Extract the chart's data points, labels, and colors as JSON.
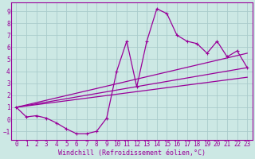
{
  "xlabel": "Windchill (Refroidissement éolien,°C)",
  "background_color": "#cce8e4",
  "grid_color": "#aacccc",
  "line_color": "#990099",
  "axis_color": "#990099",
  "xlim": [
    -0.5,
    23.5
  ],
  "ylim": [
    -1.7,
    9.7
  ],
  "xticks": [
    0,
    1,
    2,
    3,
    4,
    5,
    6,
    7,
    8,
    9,
    10,
    11,
    12,
    13,
    14,
    15,
    16,
    17,
    18,
    19,
    20,
    21,
    22,
    23
  ],
  "yticks": [
    -1,
    0,
    1,
    2,
    3,
    4,
    5,
    6,
    7,
    8,
    9
  ],
  "main_x": [
    0,
    1,
    2,
    3,
    4,
    5,
    6,
    7,
    8,
    9,
    10,
    11,
    12,
    13,
    14,
    15,
    16,
    17,
    18,
    19,
    20,
    21,
    22,
    23
  ],
  "main_y": [
    1.0,
    0.2,
    0.3,
    0.1,
    -0.3,
    -0.8,
    -1.2,
    -1.2,
    -1.0,
    0.1,
    4.0,
    6.5,
    2.7,
    6.5,
    9.2,
    8.8,
    7.0,
    6.5,
    6.3,
    5.5,
    6.5,
    5.2,
    5.7,
    4.3
  ],
  "line1_x": [
    0,
    23
  ],
  "line1_y": [
    1.0,
    5.5
  ],
  "line2_x": [
    0,
    23
  ],
  "line2_y": [
    1.0,
    4.3
  ],
  "line3_x": [
    0,
    23
  ],
  "line3_y": [
    1.0,
    3.5
  ],
  "tick_fontsize": 5.5,
  "xlabel_fontsize": 6.0
}
